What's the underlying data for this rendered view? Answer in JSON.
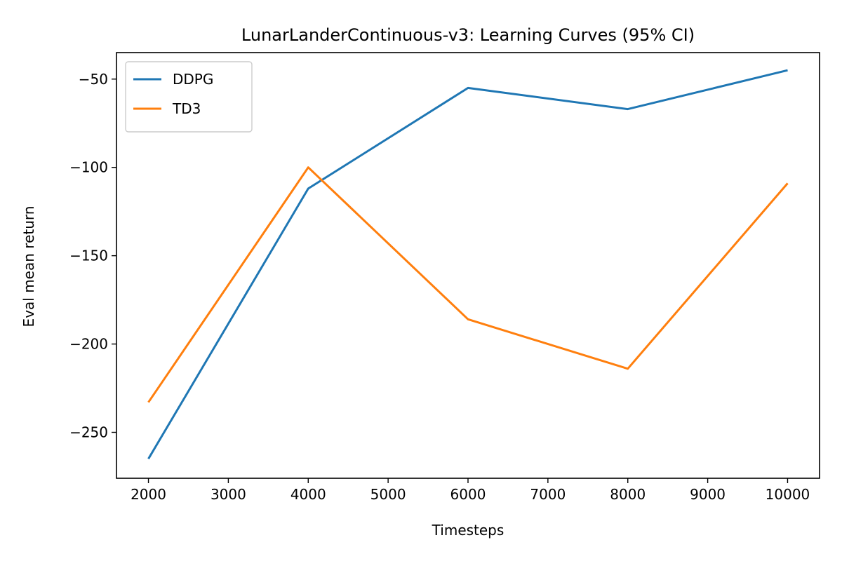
{
  "chart_data": {
    "type": "line",
    "title": "LunarLanderContinuous-v3: Learning Curves (95% CI)",
    "xlabel": "Timesteps",
    "ylabel": "Eval mean return",
    "x": [
      2000,
      4000,
      6000,
      8000,
      10000
    ],
    "xlim": [
      1600,
      10400
    ],
    "ylim": [
      -276,
      -35
    ],
    "xticks": [
      2000,
      3000,
      4000,
      5000,
      6000,
      7000,
      8000,
      9000,
      10000
    ],
    "yticks": [
      -250,
      -200,
      -150,
      -100,
      -50
    ],
    "grid": false,
    "legend_position": "top-left",
    "series": [
      {
        "name": "DDPG",
        "color": "#1f77b4",
        "values": [
          -265,
          -112,
          -55,
          -67,
          -45
        ]
      },
      {
        "name": "TD3",
        "color": "#ff7f0e",
        "values": [
          -233,
          -100,
          -186,
          -214,
          -109
        ]
      }
    ]
  }
}
